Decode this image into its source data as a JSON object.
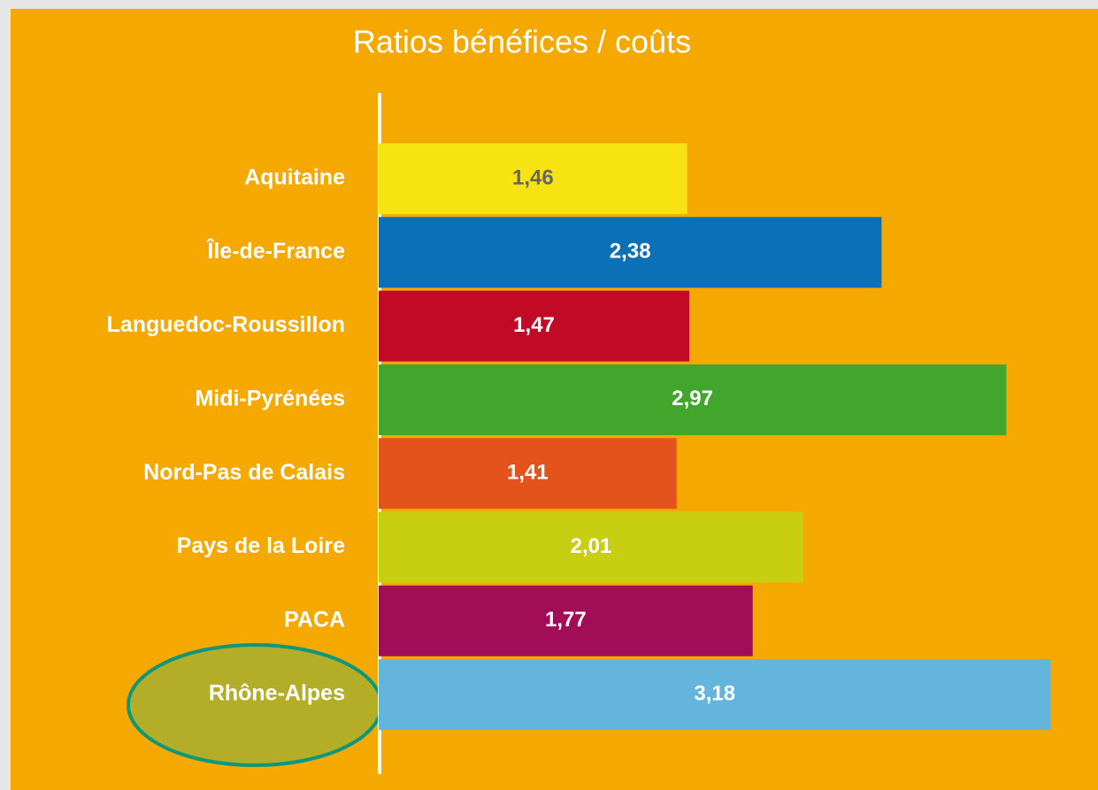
{
  "chart_data": {
    "type": "bar",
    "orientation": "horizontal",
    "title": "Ratios bénéfices / coûts",
    "categories": [
      "Aquitaine",
      "Île-de-France",
      "Languedoc-Roussillon",
      "Midi-Pyrénées",
      "Nord-Pas de Calais",
      "Pays de la Loire",
      "PACA",
      "Rhône-Alpes"
    ],
    "values": [
      1.46,
      2.38,
      1.47,
      2.97,
      1.41,
      2.01,
      1.77,
      3.18
    ],
    "value_labels": [
      "1,46",
      "2,38",
      "1,47",
      "2,97",
      "1,41",
      "2,01",
      "1,77",
      "3,18"
    ],
    "colors": [
      "#f7e212",
      "#0b70b5",
      "#c20a26",
      "#41a62b",
      "#e5531c",
      "#c8cf12",
      "#a20d57",
      "#63b5dd"
    ],
    "xlim": [
      0,
      3.4
    ]
  }
}
